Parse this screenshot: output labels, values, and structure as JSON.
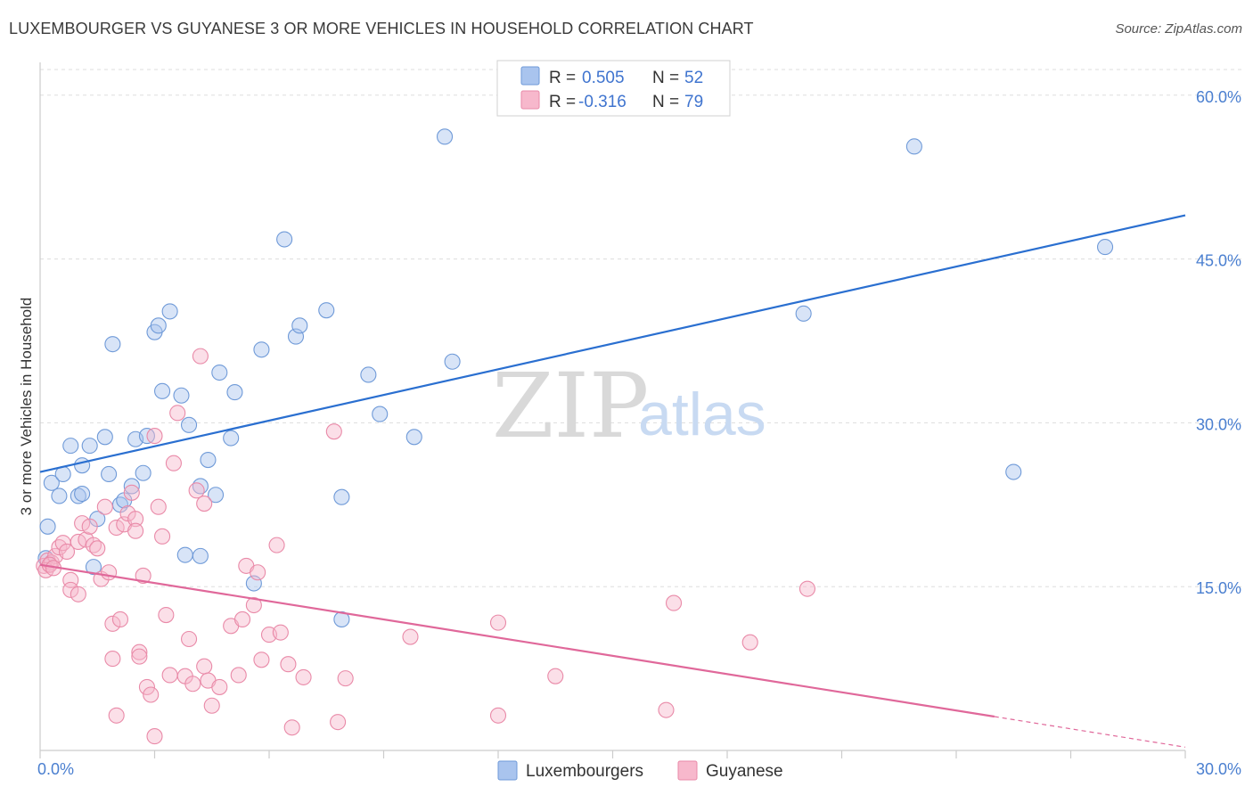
{
  "chart_data": {
    "type": "scatter",
    "title": "LUXEMBOURGER VS GUYANESE 3 OR MORE VEHICLES IN HOUSEHOLD CORRELATION CHART",
    "source": "Source: ZipAtlas.com",
    "ylabel": "3 or more Vehicles in Household",
    "xlim": [
      0,
      30
    ],
    "ylim": [
      0,
      63
    ],
    "x_tick_labels": [
      "0.0%",
      "30.0%"
    ],
    "y_ticks": [
      15,
      30,
      45,
      60
    ],
    "y_tick_labels": [
      "15.0%",
      "30.0%",
      "45.0%",
      "60.0%"
    ],
    "watermark": {
      "zip": "ZIP",
      "atlas": "atlas"
    },
    "legend": {
      "r_label": "R =",
      "n_label": "N =",
      "entries": [
        {
          "r": "0.505",
          "n": "52"
        },
        {
          "r": "-0.316",
          "n": "79"
        }
      ]
    },
    "series": [
      {
        "name": "Luxembourgers",
        "color": "#a9c4ee",
        "stroke": "#6f9ad8",
        "line_color": "#2a6fd0",
        "trend": {
          "x0": 0,
          "y0": 25.5,
          "x1": 30,
          "y1": 49.0
        },
        "points": [
          [
            0.2,
            20.5
          ],
          [
            0.3,
            24.5
          ],
          [
            0.5,
            23.3
          ],
          [
            0.6,
            25.3
          ],
          [
            0.8,
            27.9
          ],
          [
            1.0,
            23.3
          ],
          [
            1.1,
            23.5
          ],
          [
            1.1,
            26.1
          ],
          [
            1.3,
            27.9
          ],
          [
            1.4,
            16.8
          ],
          [
            1.5,
            21.2
          ],
          [
            1.7,
            28.7
          ],
          [
            1.8,
            25.3
          ],
          [
            1.9,
            37.2
          ],
          [
            2.1,
            22.5
          ],
          [
            2.2,
            22.9
          ],
          [
            2.4,
            24.2
          ],
          [
            2.5,
            28.5
          ],
          [
            2.7,
            25.4
          ],
          [
            2.8,
            28.8
          ],
          [
            3.0,
            38.3
          ],
          [
            3.1,
            38.9
          ],
          [
            3.2,
            32.9
          ],
          [
            3.4,
            40.2
          ],
          [
            3.7,
            32.5
          ],
          [
            3.8,
            17.9
          ],
          [
            3.9,
            29.8
          ],
          [
            4.2,
            17.8
          ],
          [
            4.2,
            24.2
          ],
          [
            4.4,
            26.6
          ],
          [
            4.6,
            23.4
          ],
          [
            4.7,
            34.6
          ],
          [
            5.0,
            28.6
          ],
          [
            5.1,
            32.8
          ],
          [
            5.6,
            15.3
          ],
          [
            5.8,
            36.7
          ],
          [
            6.4,
            46.8
          ],
          [
            6.7,
            37.9
          ],
          [
            6.8,
            38.9
          ],
          [
            7.5,
            40.3
          ],
          [
            7.9,
            23.2
          ],
          [
            7.9,
            12.0
          ],
          [
            8.6,
            34.4
          ],
          [
            8.9,
            30.8
          ],
          [
            9.8,
            28.7
          ],
          [
            10.6,
            56.2
          ],
          [
            10.8,
            35.6
          ],
          [
            20.0,
            40.0
          ],
          [
            22.9,
            55.3
          ],
          [
            25.5,
            25.5
          ],
          [
            27.9,
            46.1
          ],
          [
            0.15,
            17.6
          ]
        ]
      },
      {
        "name": "Guyanese",
        "color": "#f7b8cc",
        "stroke": "#e98aa8",
        "line_color": "#e0689a",
        "trend": {
          "x0": 0,
          "y0": 17.0,
          "x1": 25.0,
          "y1": 3.1
        },
        "trend_dashed": {
          "x0": 25.0,
          "y0": 3.1,
          "x1": 30,
          "y1": 0.3
        },
        "points": [
          [
            0.1,
            16.9
          ],
          [
            0.2,
            17.4
          ],
          [
            0.3,
            17.2
          ],
          [
            0.4,
            17.8
          ],
          [
            0.5,
            18.6
          ],
          [
            0.6,
            19.0
          ],
          [
            0.7,
            18.2
          ],
          [
            0.8,
            15.6
          ],
          [
            0.8,
            14.7
          ],
          [
            1.0,
            14.3
          ],
          [
            1.0,
            19.1
          ],
          [
            1.1,
            20.8
          ],
          [
            1.2,
            19.3
          ],
          [
            1.3,
            20.5
          ],
          [
            1.4,
            18.8
          ],
          [
            1.5,
            18.5
          ],
          [
            1.6,
            15.7
          ],
          [
            1.7,
            22.3
          ],
          [
            1.8,
            16.3
          ],
          [
            1.9,
            11.6
          ],
          [
            1.9,
            8.4
          ],
          [
            2.0,
            20.4
          ],
          [
            2.0,
            3.2
          ],
          [
            2.1,
            12.0
          ],
          [
            2.2,
            20.7
          ],
          [
            2.3,
            21.7
          ],
          [
            2.4,
            23.6
          ],
          [
            2.5,
            21.2
          ],
          [
            2.5,
            20.1
          ],
          [
            2.6,
            9.0
          ],
          [
            2.6,
            8.6
          ],
          [
            2.7,
            16.0
          ],
          [
            2.8,
            5.8
          ],
          [
            2.9,
            5.1
          ],
          [
            3.0,
            28.8
          ],
          [
            3.0,
            1.3
          ],
          [
            3.1,
            22.3
          ],
          [
            3.2,
            19.6
          ],
          [
            3.3,
            12.4
          ],
          [
            3.4,
            6.9
          ],
          [
            3.5,
            26.3
          ],
          [
            3.6,
            30.9
          ],
          [
            3.8,
            6.8
          ],
          [
            3.9,
            10.2
          ],
          [
            4.0,
            6.1
          ],
          [
            4.1,
            23.8
          ],
          [
            4.2,
            36.1
          ],
          [
            4.3,
            7.7
          ],
          [
            4.3,
            22.6
          ],
          [
            4.4,
            6.4
          ],
          [
            4.5,
            4.1
          ],
          [
            4.7,
            5.8
          ],
          [
            5.0,
            11.4
          ],
          [
            5.2,
            6.9
          ],
          [
            5.3,
            12.0
          ],
          [
            5.4,
            16.9
          ],
          [
            5.6,
            13.3
          ],
          [
            5.7,
            16.3
          ],
          [
            5.8,
            8.3
          ],
          [
            6.0,
            10.6
          ],
          [
            6.2,
            18.8
          ],
          [
            6.3,
            10.8
          ],
          [
            6.5,
            7.9
          ],
          [
            6.6,
            2.1
          ],
          [
            6.9,
            6.7
          ],
          [
            7.7,
            29.2
          ],
          [
            7.8,
            2.6
          ],
          [
            8.0,
            6.6
          ],
          [
            9.7,
            10.4
          ],
          [
            12.0,
            11.7
          ],
          [
            12.0,
            3.2
          ],
          [
            13.5,
            6.8
          ],
          [
            16.4,
            3.7
          ],
          [
            16.6,
            13.5
          ],
          [
            18.6,
            9.9
          ],
          [
            20.1,
            14.8
          ],
          [
            0.15,
            16.5
          ],
          [
            0.25,
            17.0
          ],
          [
            0.35,
            16.7
          ]
        ]
      }
    ]
  }
}
